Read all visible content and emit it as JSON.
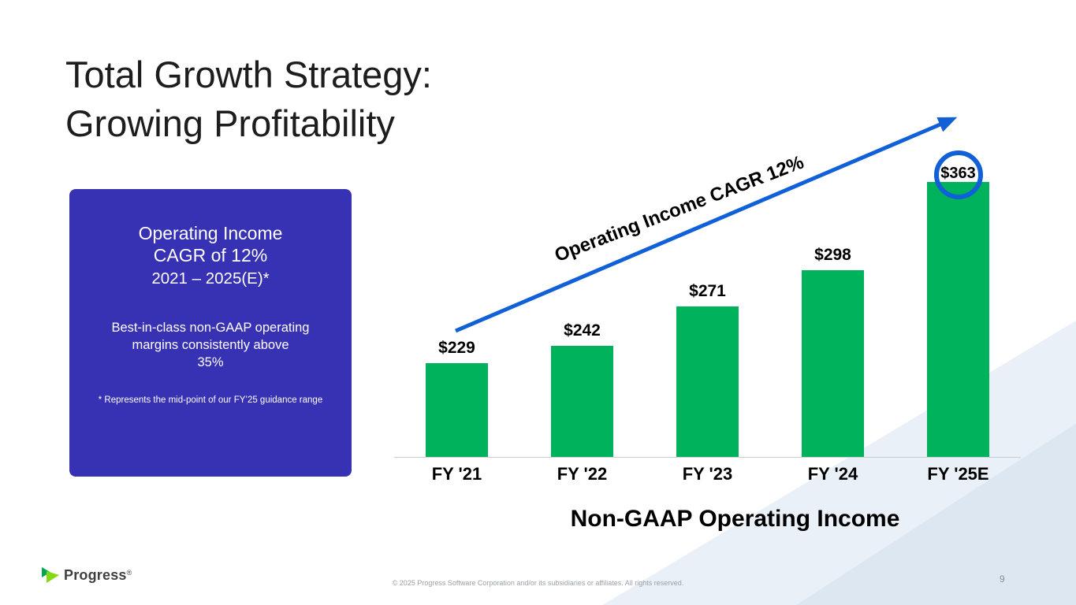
{
  "slide": {
    "title": [
      "Total Growth Strategy:",
      "Growing Profitability"
    ],
    "page_number": "9",
    "copyright": "© 2025 Progress Software Corporation and/or its subsidiaries or affiliates. All rights reserved.",
    "brand": "Progress",
    "brand_mark": "®"
  },
  "icons": {
    "brand_logo": "progress-chevron-icon",
    "trend": "arrow-up-right-icon"
  },
  "callout": {
    "heading_line1": "Operating Income",
    "heading_line2": "CAGR of 12%",
    "heading_line3": "2021 – 2025(E)*",
    "body_lines": [
      "Best-in-class non-GAAP operating",
      "margins consistently above",
      "35%"
    ],
    "footnote": "* Represents the mid-point of our FY’25 guidance range",
    "background_color": "#3731b4"
  },
  "chart_data": {
    "type": "bar",
    "title": "Non-GAAP Operating Income",
    "categories": [
      "FY '21",
      "FY '22",
      "FY '23",
      "FY '24",
      "FY '25E"
    ],
    "values": [
      229,
      242,
      271,
      298,
      363
    ],
    "value_labels": [
      "$229",
      "$242",
      "$271",
      "$298",
      "$363"
    ],
    "annotation": "Operating Income CAGR 12%",
    "highlight_index": 4,
    "bar_color": "#00b25c",
    "arrow_color": "#1160d8",
    "ylim": [
      160,
      375
    ],
    "grid": false,
    "legend": false
  }
}
